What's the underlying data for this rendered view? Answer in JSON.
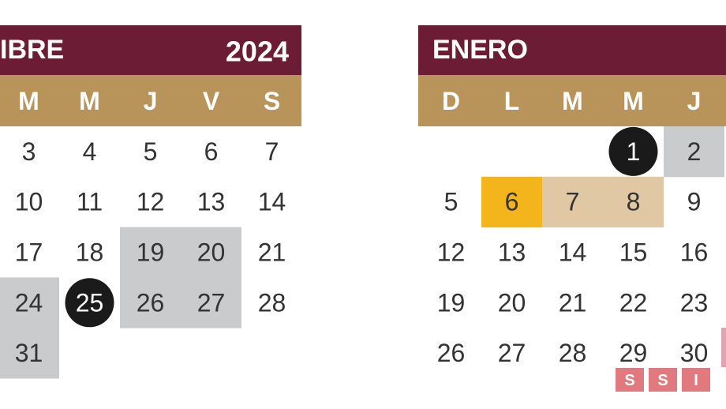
{
  "calendars": [
    {
      "month": "IBRE",
      "year": "2024",
      "weekdays": [
        "M",
        "M",
        "J",
        "V",
        "S"
      ],
      "weeks": [
        [
          {
            "day": 3,
            "style": "plain"
          },
          {
            "day": 4,
            "style": "plain"
          },
          {
            "day": 5,
            "style": "plain"
          },
          {
            "day": 6,
            "style": "plain"
          },
          {
            "day": 7,
            "style": "plain"
          }
        ],
        [
          {
            "day": 10,
            "style": "plain"
          },
          {
            "day": 11,
            "style": "plain"
          },
          {
            "day": 12,
            "style": "plain"
          },
          {
            "day": 13,
            "style": "plain"
          },
          {
            "day": 14,
            "style": "plain"
          }
        ],
        [
          {
            "day": 17,
            "style": "plain"
          },
          {
            "day": 18,
            "style": "plain"
          },
          {
            "day": 19,
            "style": "gray"
          },
          {
            "day": 20,
            "style": "gray"
          },
          {
            "day": 21,
            "style": "plain"
          }
        ],
        [
          {
            "day": 24,
            "style": "gray"
          },
          {
            "day": 25,
            "style": "black"
          },
          {
            "day": 26,
            "style": "gray"
          },
          {
            "day": 27,
            "style": "gray"
          },
          {
            "day": 28,
            "style": "plain"
          }
        ],
        [
          {
            "day": 31,
            "style": "gray"
          },
          null,
          null,
          null,
          null
        ]
      ]
    },
    {
      "month": "ENERO",
      "weekdays": [
        "D",
        "L",
        "M",
        "M",
        "J"
      ],
      "weeks": [
        [
          null,
          null,
          null,
          {
            "day": 1,
            "style": "black"
          },
          {
            "day": 2,
            "style": "gray"
          }
        ],
        [
          {
            "day": 5,
            "style": "plain"
          },
          {
            "day": 6,
            "style": "yellow"
          },
          {
            "day": 7,
            "style": "tan"
          },
          {
            "day": 8,
            "style": "tan"
          },
          {
            "day": 9,
            "style": "plain"
          }
        ],
        [
          {
            "day": 12,
            "style": "plain"
          },
          {
            "day": 13,
            "style": "plain"
          },
          {
            "day": 14,
            "style": "plain"
          },
          {
            "day": 15,
            "style": "plain"
          },
          {
            "day": 16,
            "style": "plain"
          }
        ],
        [
          {
            "day": 19,
            "style": "plain"
          },
          {
            "day": 20,
            "style": "plain"
          },
          {
            "day": 21,
            "style": "plain"
          },
          {
            "day": 22,
            "style": "plain"
          },
          {
            "day": 23,
            "style": "plain"
          }
        ],
        [
          {
            "day": 26,
            "style": "plain"
          },
          {
            "day": 27,
            "style": "plain"
          },
          {
            "day": 28,
            "style": "plain"
          },
          {
            "day": 29,
            "style": "plain"
          },
          {
            "day": 30,
            "style": "plain"
          }
        ]
      ]
    }
  ],
  "watermark": [
    "S",
    "S",
    "I"
  ]
}
